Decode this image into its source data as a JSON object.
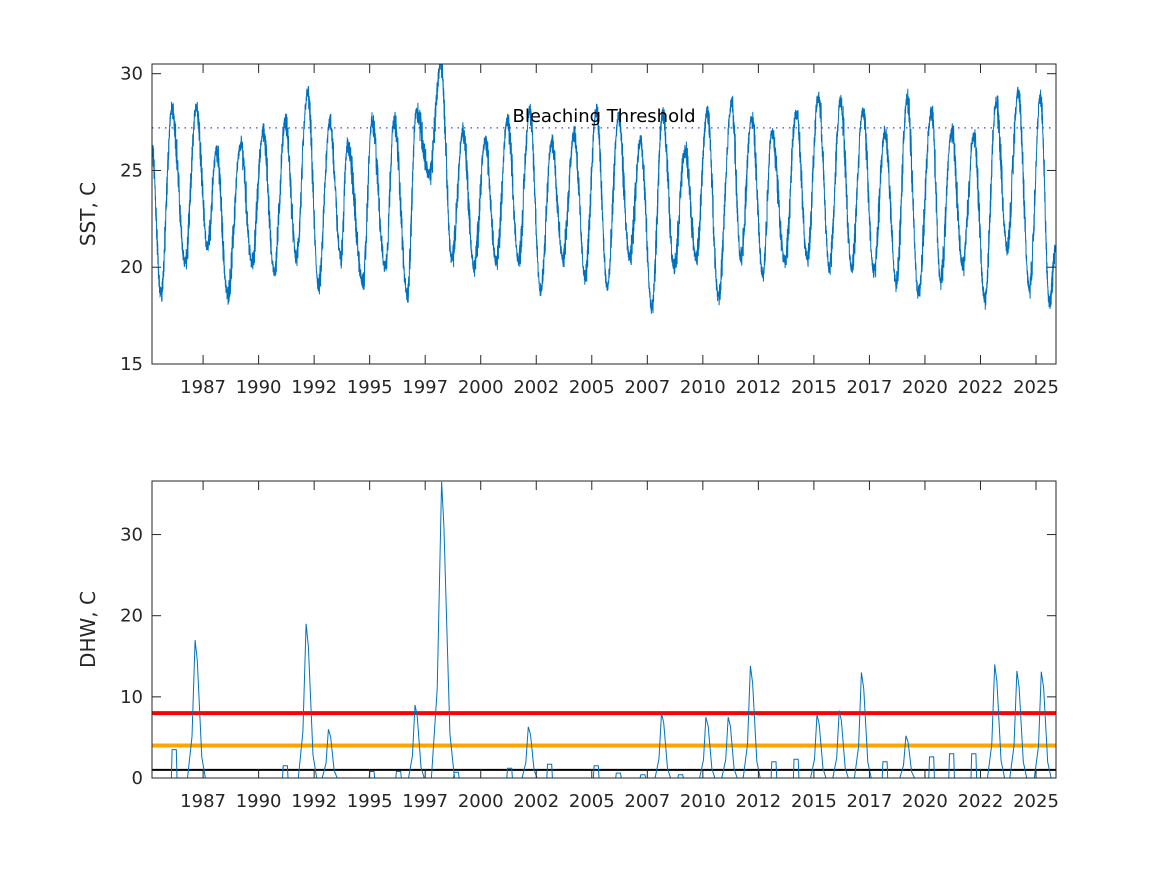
{
  "chart_data": [
    {
      "type": "line",
      "title": "",
      "xlabel": "",
      "ylabel": "SST, C",
      "xlim": [
        1985.2,
        2025.9
      ],
      "ylim": [
        15,
        30.5
      ],
      "yticks": [
        15,
        20,
        25,
        30
      ],
      "xticks": [
        1987.5,
        1990.0,
        1992.5,
        1995.0,
        1997.5,
        2000.0,
        2002.5,
        2005.0,
        2007.5,
        2010.0,
        2012.5,
        2015.0,
        2017.5,
        2020.0,
        2022.5,
        2025.0
      ],
      "xticklabels": [
        "1987",
        "1990",
        "1992",
        "1995",
        "1997",
        "2000",
        "2002",
        "2005",
        "2007",
        "2010",
        "2012",
        "2015",
        "2017",
        "2020",
        "2022",
        "2025"
      ],
      "grid": false,
      "series_color": "#0072BD",
      "threshold": {
        "label": "Bleaching Threshold",
        "value": 27.2,
        "color": "#4040E0"
      },
      "seasonal_peaks": [
        [
          1985.2,
          26.0
        ],
        [
          1986.1,
          28.2
        ],
        [
          1987.2,
          28.3
        ],
        [
          1988.1,
          26.0
        ],
        [
          1989.2,
          26.3
        ],
        [
          1990.2,
          27.0
        ],
        [
          1991.2,
          27.5
        ],
        [
          1992.2,
          29.0
        ],
        [
          1993.2,
          27.5
        ],
        [
          1994.0,
          26.3
        ],
        [
          1995.1,
          27.5
        ],
        [
          1996.1,
          27.6
        ],
        [
          1997.1,
          28.1
        ],
        [
          1998.2,
          30.5
        ],
        [
          1999.2,
          27.0
        ],
        [
          2000.2,
          26.5
        ],
        [
          2001.2,
          27.5
        ],
        [
          2002.2,
          28.0
        ],
        [
          2003.2,
          26.5
        ],
        [
          2004.2,
          26.9
        ],
        [
          2005.2,
          28.1
        ],
        [
          2006.2,
          27.7
        ],
        [
          2007.2,
          26.5
        ],
        [
          2008.2,
          28.0
        ],
        [
          2009.2,
          26.0
        ],
        [
          2010.2,
          28.0
        ],
        [
          2011.3,
          28.5
        ],
        [
          2012.2,
          27.7
        ],
        [
          2013.1,
          27.0
        ],
        [
          2014.2,
          28.0
        ],
        [
          2015.2,
          28.8
        ],
        [
          2016.2,
          28.6
        ],
        [
          2017.2,
          28.1
        ],
        [
          2018.2,
          27.0
        ],
        [
          2019.2,
          28.7
        ],
        [
          2020.3,
          28.1
        ],
        [
          2021.2,
          27.0
        ],
        [
          2022.2,
          26.8
        ],
        [
          2023.2,
          28.5
        ],
        [
          2024.2,
          29.0
        ],
        [
          2025.2,
          28.8
        ]
      ],
      "seasonal_troughs": [
        [
          1985.6,
          18.6
        ],
        [
          1986.7,
          20.2
        ],
        [
          1987.7,
          21.0
        ],
        [
          1988.6,
          18.6
        ],
        [
          1989.7,
          20.2
        ],
        [
          1990.7,
          19.8
        ],
        [
          1991.7,
          20.5
        ],
        [
          1992.7,
          19.0
        ],
        [
          1993.7,
          20.5
        ],
        [
          1994.7,
          19.2
        ],
        [
          1995.7,
          20.0
        ],
        [
          1996.7,
          18.6
        ],
        [
          1997.7,
          24.8
        ],
        [
          1998.7,
          20.4
        ],
        [
          1999.7,
          20.0
        ],
        [
          2000.7,
          20.3
        ],
        [
          2001.7,
          20.4
        ],
        [
          2002.7,
          18.8
        ],
        [
          2003.7,
          20.5
        ],
        [
          2004.7,
          19.5
        ],
        [
          2005.7,
          19.0
        ],
        [
          2006.7,
          20.5
        ],
        [
          2007.7,
          17.9
        ],
        [
          2008.7,
          20.0
        ],
        [
          2009.7,
          20.5
        ],
        [
          2010.7,
          18.5
        ],
        [
          2011.7,
          20.5
        ],
        [
          2012.7,
          19.6
        ],
        [
          2013.7,
          20.3
        ],
        [
          2014.7,
          20.5
        ],
        [
          2015.7,
          20.0
        ],
        [
          2016.7,
          20.0
        ],
        [
          2017.7,
          19.8
        ],
        [
          2018.7,
          19.2
        ],
        [
          2019.7,
          18.7
        ],
        [
          2020.7,
          19.3
        ],
        [
          2021.7,
          20.1
        ],
        [
          2022.7,
          18.3
        ],
        [
          2023.7,
          21.0
        ],
        [
          2024.7,
          18.9
        ],
        [
          2025.6,
          18.2
        ],
        [
          2025.9,
          21.0
        ]
      ]
    },
    {
      "type": "line",
      "title": "",
      "xlabel": "",
      "ylabel": "DHW, C",
      "xlim": [
        1985.2,
        2025.9
      ],
      "ylim": [
        0,
        36.6
      ],
      "yticks": [
        0,
        10,
        20,
        30
      ],
      "xticks": [
        1987.5,
        1990.0,
        1992.5,
        1995.0,
        1997.5,
        2000.0,
        2002.5,
        2005.0,
        2007.5,
        2010.0,
        2012.5,
        2015.0,
        2017.5,
        2020.0,
        2022.5,
        2025.0
      ],
      "xticklabels": [
        "1987",
        "1990",
        "1992",
        "1995",
        "1997",
        "2000",
        "2002",
        "2005",
        "2007",
        "2010",
        "2012",
        "2015",
        "2017",
        "2020",
        "2022",
        "2025"
      ],
      "grid": false,
      "series_color": "#0072BD",
      "reference_lines": [
        {
          "value": 8,
          "color": "#FF0000"
        },
        {
          "value": 4,
          "color": "#FFA500"
        },
        {
          "value": 1,
          "color": "#000000"
        }
      ],
      "dhw_events": [
        [
          1986.2,
          3.5
        ],
        [
          1987.2,
          17.0
        ],
        [
          1991.2,
          1.5
        ],
        [
          1992.2,
          19.0
        ],
        [
          1993.2,
          6.0
        ],
        [
          1995.1,
          0.8
        ],
        [
          1996.3,
          0.8
        ],
        [
          1997.1,
          9.0
        ],
        [
          1998.3,
          36.5
        ],
        [
          1998.9,
          0.7
        ],
        [
          2001.3,
          1.2
        ],
        [
          2002.2,
          6.3
        ],
        [
          2003.1,
          1.7
        ],
        [
          2005.2,
          1.5
        ],
        [
          2006.2,
          0.6
        ],
        [
          2007.3,
          0.4
        ],
        [
          2008.2,
          8.0
        ],
        [
          2009.0,
          0.4
        ],
        [
          2010.2,
          7.5
        ],
        [
          2011.2,
          7.5
        ],
        [
          2012.2,
          13.8
        ],
        [
          2013.2,
          2.0
        ],
        [
          2014.2,
          2.3
        ],
        [
          2015.2,
          7.8
        ],
        [
          2016.2,
          8.3
        ],
        [
          2017.2,
          13.0
        ],
        [
          2018.2,
          2.0
        ],
        [
          2019.2,
          5.2
        ],
        [
          2020.3,
          2.6
        ],
        [
          2021.2,
          3.0
        ],
        [
          2022.2,
          3.0
        ],
        [
          2023.2,
          14.0
        ],
        [
          2024.2,
          13.2
        ],
        [
          2025.3,
          13.1
        ]
      ]
    }
  ]
}
